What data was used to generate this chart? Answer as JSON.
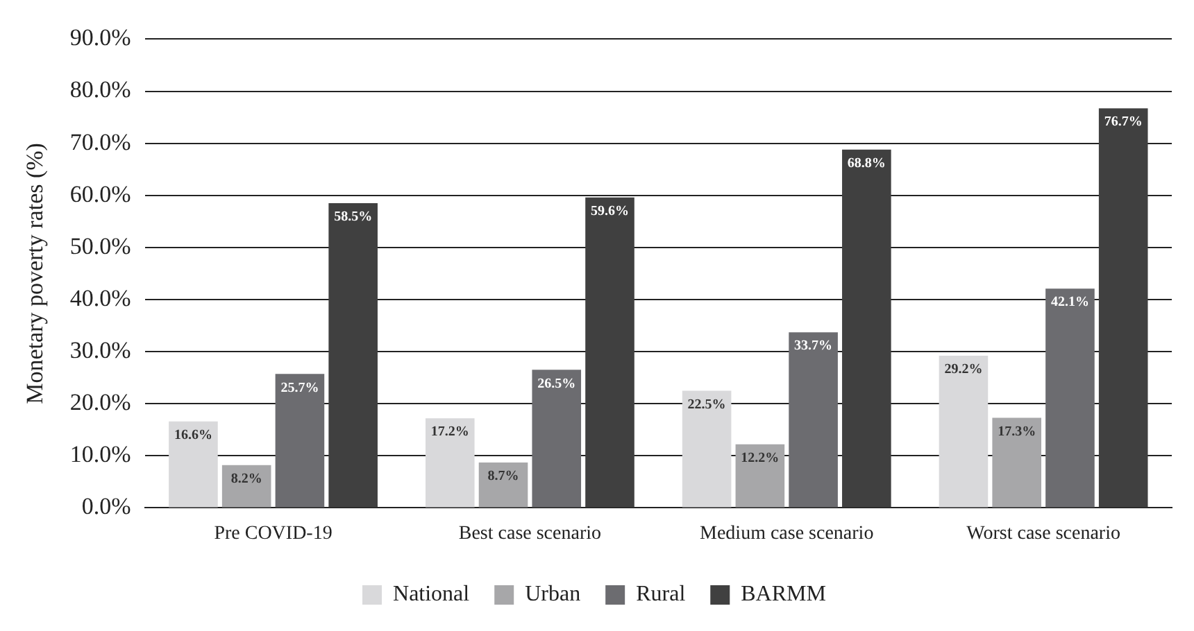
{
  "chart_data": {
    "type": "bar",
    "ylabel": "Monetary poverty rates (%)",
    "categories": [
      "Pre COVID-19",
      "Best case scenario",
      "Medium case scenario",
      "Worst case scenario"
    ],
    "series": [
      {
        "name": "National",
        "color": "#d9d9db",
        "values": [
          16.6,
          17.2,
          22.5,
          29.2
        ],
        "value_labels": [
          "16.6%",
          "17.2%",
          "22.5%",
          "29.2%"
        ]
      },
      {
        "name": "Urban",
        "color": "#a7a7a9",
        "values": [
          8.2,
          8.7,
          12.2,
          17.3
        ],
        "value_labels": [
          "8.2%",
          "8.7%",
          "12.2%",
          "17.3%"
        ]
      },
      {
        "name": "Rural",
        "color": "#6c6c70",
        "values": [
          25.7,
          26.5,
          33.7,
          42.1
        ],
        "value_labels": [
          "25.7%",
          "26.5%",
          "33.7%",
          "42.1%"
        ]
      },
      {
        "name": "BARMM",
        "color": "#404040",
        "values": [
          58.5,
          59.6,
          68.8,
          76.7
        ],
        "value_labels": [
          "58.5%",
          "59.6%",
          "68.8%",
          "76.7%"
        ]
      }
    ],
    "ylim": [
      0,
      90
    ],
    "yticks": [
      {
        "value": 0,
        "label": "0.0%"
      },
      {
        "value": 10,
        "label": "10.0%"
      },
      {
        "value": 20,
        "label": "20.0%"
      },
      {
        "value": 30,
        "label": "30.0%"
      },
      {
        "value": 40,
        "label": "40.0%"
      },
      {
        "value": 50,
        "label": "50.0%"
      },
      {
        "value": 60,
        "label": "60.0%"
      },
      {
        "value": 70,
        "label": "70.0%"
      },
      {
        "value": 80,
        "label": "80.0%"
      },
      {
        "value": 90,
        "label": "90.0%"
      }
    ],
    "grid": "y",
    "legend": "bottom"
  }
}
